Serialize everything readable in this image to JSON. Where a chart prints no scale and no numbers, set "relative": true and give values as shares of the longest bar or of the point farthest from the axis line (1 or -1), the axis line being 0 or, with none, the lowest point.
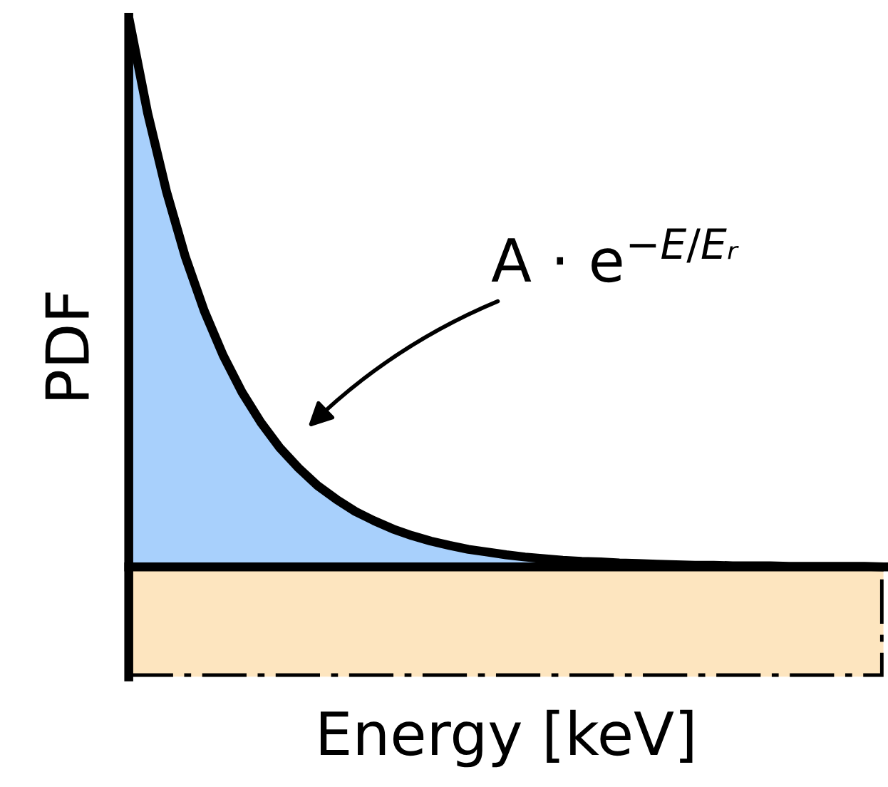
{
  "chart_data": {
    "type": "area",
    "relative": true,
    "xlabel": "Energy [keV]",
    "ylabel": "PDF",
    "categories": [
      null,
      null,
      null,
      null,
      null,
      null,
      null,
      null,
      null,
      null,
      null,
      null,
      null,
      null,
      null,
      null,
      null,
      null,
      null,
      null,
      null,
      null,
      null,
      null,
      null,
      null,
      null,
      null,
      null,
      null,
      null,
      null,
      null,
      null,
      null,
      null,
      null,
      null,
      null,
      null,
      null
    ],
    "series": [
      {
        "color": "#a8d0fc",
        "values": [
          1.0,
          0.826,
          0.683,
          0.564,
          0.466,
          0.385,
          0.318,
          0.263,
          0.217,
          0.18,
          0.148,
          0.123,
          0.101,
          0.084,
          0.069,
          0.057,
          0.047,
          0.039,
          0.032,
          0.027,
          0.022,
          0.018,
          0.015,
          0.012,
          0.01,
          0.009,
          0.007,
          0.006,
          0.005,
          0.004,
          0.003,
          0.003,
          0.002,
          0.002,
          0.002,
          0.001,
          0.001,
          0.001,
          0.001,
          0.001,
          0.0
        ]
      }
    ],
    "annotations": [
      "A · e$^{−E/Eᵣ}$"
    ],
    "bands": [
      {
        "axis": "y",
        "from": -0.2,
        "to": 0,
        "color": "#fde5bf"
      }
    ]
  }
}
